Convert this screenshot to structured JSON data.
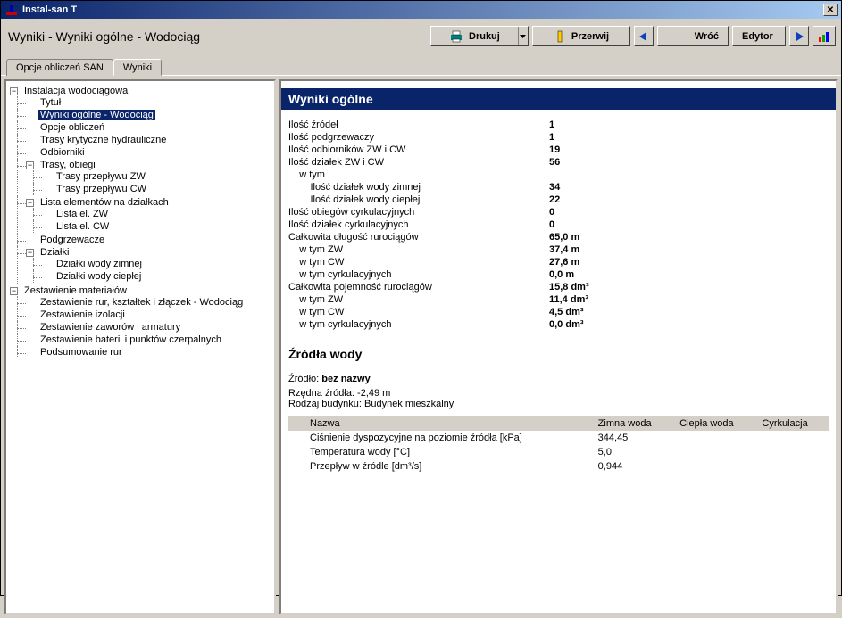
{
  "window": {
    "title": "Instal-san T"
  },
  "breadcrumb": "Wyniki - Wyniki ogólne - Wodociąg",
  "toolbar": {
    "print": "Drukuj",
    "abort": "Przerwij",
    "back": "Wróć",
    "editor": "Edytor"
  },
  "tabs": {
    "opcje": "Opcje obliczeń SAN",
    "wyniki": "Wyniki"
  },
  "tree": {
    "root1": "Instalacja wodociągowa",
    "t1": "Tytuł",
    "t2": "Wyniki ogólne - Wodociąg",
    "t3": "Opcje obliczeń",
    "t4": "Trasy krytyczne hydrauliczne",
    "t5": "Odbiorniki",
    "t6": "Trasy, obiegi",
    "t6a": "Trasy przepływu ZW",
    "t6b": "Trasy przepływu CW",
    "t7": "Lista elementów na działkach",
    "t7a": "Lista el. ZW",
    "t7b": "Lista el. CW",
    "t8": "Podgrzewacze",
    "t9": "Działki",
    "t9a": "Działki wody zimnej",
    "t9b": "Działki wody ciepłej",
    "root2": "Zestawienie materiałów",
    "z1": "Zestawienie rur, kształtek i złączek - Wodociąg",
    "z2": "Zestawienie izolacji",
    "z3": "Zestawienie zaworów i armatury",
    "z4": "Zestawienie baterii i punktów czerpalnych",
    "z5": "Podsumowanie rur"
  },
  "results": {
    "header": "Wyniki ogólne",
    "rows": [
      {
        "k": "Ilość źródeł",
        "v": "1"
      },
      {
        "k": "Ilość podgrzewaczy",
        "v": "1"
      },
      {
        "k": "Ilość odbiorników ZW i CW",
        "v": "19"
      },
      {
        "k": "Ilość działek ZW i CW",
        "v": "56"
      },
      {
        "k": "  w tym",
        "v": ""
      },
      {
        "k": "    Ilość działek wody zimnej",
        "v": "34"
      },
      {
        "k": "    Ilość działek wody ciepłej",
        "v": "22"
      },
      {
        "k": "Ilość obiegów cyrkulacyjnych",
        "v": "0"
      },
      {
        "k": "Ilość działek cyrkulacyjnych",
        "v": "0"
      },
      {
        "k": "Całkowita długość rurociągów",
        "v": "65,0 m"
      },
      {
        "k": "  w tym ZW",
        "v": "37,4 m"
      },
      {
        "k": "  w tym CW",
        "v": "27,6 m"
      },
      {
        "k": "  w tym cyrkulacyjnych",
        "v": "0,0 m"
      },
      {
        "k": "Całkowita pojemność rurociągów",
        "v": "15,8 dm³"
      },
      {
        "k": "  w tym ZW",
        "v": "11,4 dm³"
      },
      {
        "k": "  w tym CW",
        "v": "4,5 dm³"
      },
      {
        "k": "  w tym cyrkulacyjnych",
        "v": "0,0 dm³"
      }
    ],
    "sources_header": "Źródła wody",
    "source_name_label": "Źródło: ",
    "source_name": "bez nazwy",
    "elev_label": "Rzędna źródła: ",
    "elev_value": "-2,49 m",
    "building_label": "Rodzaj budynku: ",
    "building_value": "Budynek mieszkalny",
    "table": {
      "cols": [
        "Nazwa",
        "Zimna woda",
        "Ciepła woda",
        "Cyrkulacja"
      ],
      "rows": [
        [
          "Ciśnienie dyspozycyjne na poziomie źródła [kPa]",
          "344,45",
          "",
          ""
        ],
        [
          "Temperatura wody [°C]",
          "5,0",
          "",
          ""
        ],
        [
          "Przepływ w źródle [dm³/s]",
          "0,944",
          "",
          ""
        ]
      ]
    }
  },
  "colors": {
    "titlebar_start": "#0a246a",
    "titlebar_end": "#a6caf0",
    "bg": "#d4d0c8",
    "selection": "#0a246a"
  }
}
